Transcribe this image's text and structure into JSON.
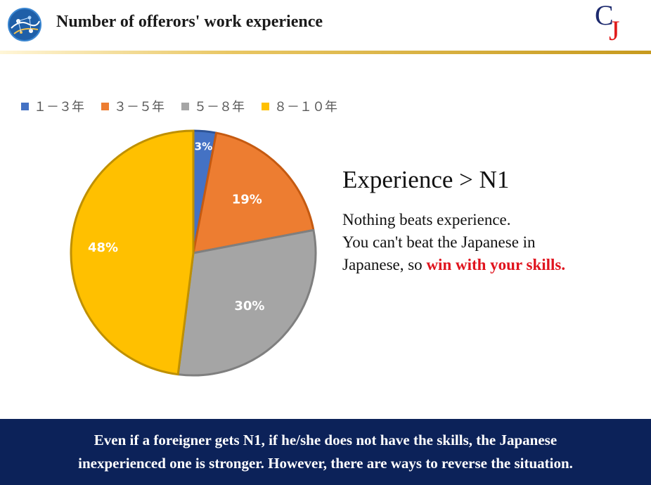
{
  "header": {
    "title": "Number of offerors' work experience",
    "brand_c": "C",
    "brand_j": "J"
  },
  "colors": {
    "blue": "#4472c4",
    "orange": "#ed7d31",
    "gray": "#a5a5a5",
    "gold": "#ffc000",
    "footer_bg": "#0c2259",
    "highlight": "#e0141e"
  },
  "chart_data": {
    "type": "pie",
    "categories": [
      "１－３年",
      "３－５年",
      "５－８年",
      "８－１０年"
    ],
    "values": [
      3,
      19,
      30,
      48
    ],
    "labels": [
      "3%",
      "19%",
      "30%",
      "48%"
    ],
    "legend_position": "top-left"
  },
  "side": {
    "heading": "Experience > N1",
    "line1": "Nothing beats experience.",
    "line2": "You can't beat the Japanese in",
    "line3_prefix": "Japanese, so ",
    "line3_highlight": "win with your skills."
  },
  "footer": {
    "line1": "Even if a foreigner gets N1, if he/she does not have the skills, the Japanese",
    "line2": "inexperienced one is stronger. However, there are ways to reverse the situation."
  }
}
